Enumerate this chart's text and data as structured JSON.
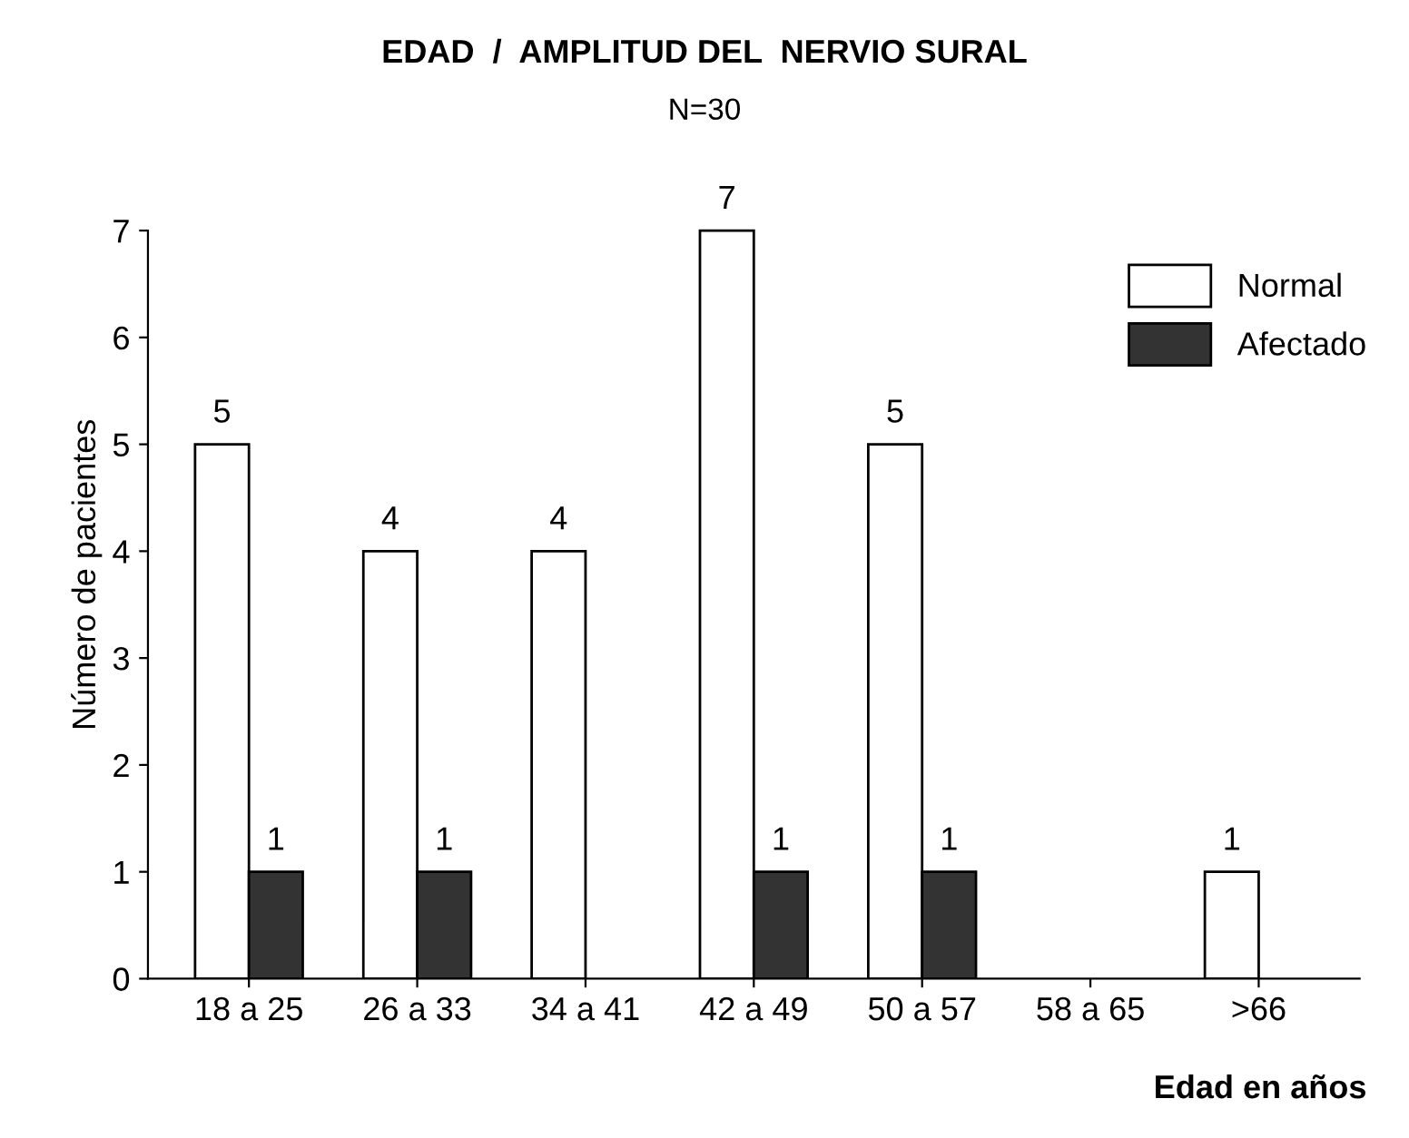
{
  "chart_data": {
    "type": "bar",
    "title": "EDAD  /  AMPLITUD DEL  NERVIO SURAL",
    "subtitle": "N=30",
    "xlabel": "Edad en años",
    "ylabel": "Número de pacientes",
    "categories": [
      "18 a 25",
      "26 a 33",
      "34 a 41",
      "42 a 49",
      "50 a 57",
      "58 a 65",
      ">66"
    ],
    "series": [
      {
        "name": "Normal",
        "color": "#ffffff",
        "values": [
          5,
          4,
          4,
          7,
          5,
          null,
          1
        ]
      },
      {
        "name": "Afectado",
        "color": "#333333",
        "values": [
          1,
          1,
          null,
          1,
          1,
          null,
          null
        ]
      }
    ],
    "ylim": [
      0,
      7
    ],
    "yticks": [
      0,
      1,
      2,
      3,
      4,
      5,
      6,
      7
    ],
    "data_labels": true,
    "legend": "top right",
    "grid": false
  }
}
